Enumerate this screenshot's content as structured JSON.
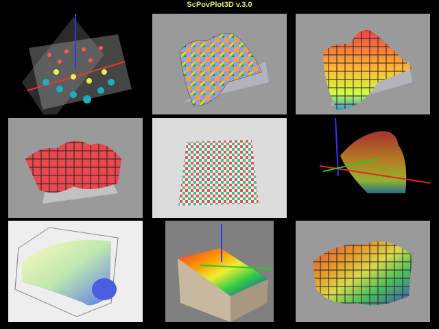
{
  "title": "ScPovPlot3D v.3.0",
  "colors": {
    "background": "#000000",
    "title": "#e8e86a",
    "panel_gray": "#9a9a9a",
    "panel_light": "#dcdcdc"
  },
  "panels": [
    {
      "name": "scatter-spheres-render"
    },
    {
      "name": "checkered-surface-render"
    },
    {
      "name": "gridded-surface-render"
    },
    {
      "name": "red-surface-render"
    },
    {
      "name": "checkered-plane-render"
    },
    {
      "name": "transparent-surface-render"
    },
    {
      "name": "box-contour-render"
    },
    {
      "name": "terrain-block-render"
    },
    {
      "name": "glass-surface-render"
    }
  ]
}
